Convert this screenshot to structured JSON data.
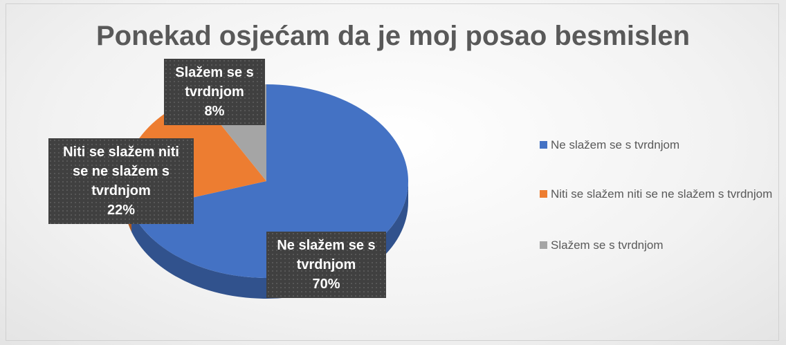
{
  "chart_data": {
    "type": "pie",
    "title": "Ponekad osjećam da je moj posao besmislen",
    "categories": [
      "Ne slažem se s tvrdnjom",
      "Niti se slažem niti se ne slažem s tvrdnjom",
      "Slažem se s tvrdnjom"
    ],
    "values": [
      70,
      22,
      8
    ],
    "value_labels": [
      "70%",
      "22%",
      "8%"
    ],
    "colors": [
      "#4472c4",
      "#ed7d31",
      "#a5a5a5"
    ],
    "legend": "right"
  }
}
